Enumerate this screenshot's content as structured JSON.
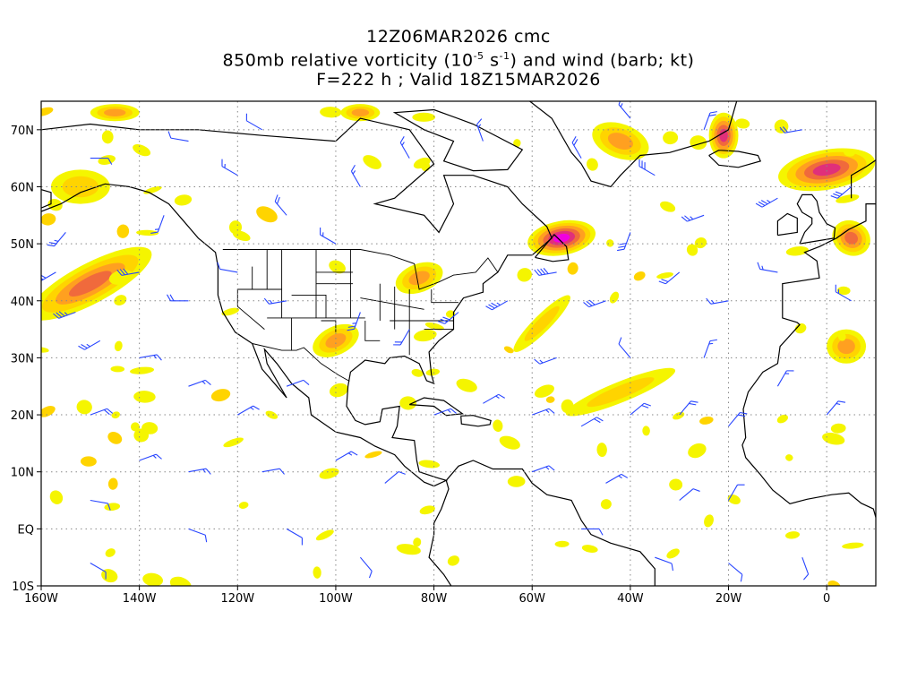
{
  "title": {
    "line1": "12Z06MAR2026 cmc",
    "line2_pre": "850mb relative vorticity (10",
    "line2_sup1": "-5",
    "line2_mid": " s",
    "line2_sup2": "-1",
    "line2_post": ") and wind (barb; kt)",
    "line3": "F=222 h ; Valid 18Z15MAR2026"
  },
  "axes": {
    "lon_range": [
      -160,
      10
    ],
    "lat_range": [
      -10,
      75
    ],
    "x_ticks": [
      {
        "lon": -160,
        "label": "160W"
      },
      {
        "lon": -140,
        "label": "140W"
      },
      {
        "lon": -120,
        "label": "120W"
      },
      {
        "lon": -100,
        "label": "100W"
      },
      {
        "lon": -80,
        "label": "80W"
      },
      {
        "lon": -60,
        "label": "60W"
      },
      {
        "lon": -40,
        "label": "40W"
      },
      {
        "lon": -20,
        "label": "20W"
      },
      {
        "lon": 0,
        "label": "0"
      }
    ],
    "y_ticks": [
      {
        "lat": -10,
        "label": "10S"
      },
      {
        "lat": 0,
        "label": "EQ"
      },
      {
        "lat": 10,
        "label": "10N"
      },
      {
        "lat": 20,
        "label": "20N"
      },
      {
        "lat": 30,
        "label": "30N"
      },
      {
        "lat": 40,
        "label": "40N"
      },
      {
        "lat": 50,
        "label": "50N"
      },
      {
        "lat": 60,
        "label": "60N"
      },
      {
        "lat": 70,
        "label": "70N"
      }
    ],
    "grid": "dotted"
  },
  "colors": {
    "level1": "#f5f500",
    "level2": "#ffd400",
    "level3": "#ffa020",
    "level4": "#f06a3c",
    "level5": "#e0307a",
    "level6": "#f000e0",
    "wind_barb": "#2845ff",
    "coastline": "#000000"
  },
  "vorticity_features": [
    {
      "name": "north-pacific-band",
      "lon": -150,
      "lat": 43,
      "rlon": 14,
      "rlat": 3.5,
      "rot": -28,
      "peak": 4
    },
    {
      "name": "gulf-alaska",
      "lon": -152,
      "lat": 60,
      "rlon": 6,
      "rlat": 3,
      "rot": 0,
      "peak": 2
    },
    {
      "name": "bering",
      "lon": -145,
      "lat": 73,
      "rlon": 5,
      "rlat": 1.5,
      "rot": 0,
      "peak": 3
    },
    {
      "name": "newfoundland-low",
      "lon": -54,
      "lat": 51,
      "rlon": 7,
      "rlat": 3,
      "rot": -10,
      "peak": 6
    },
    {
      "name": "great-lakes",
      "lon": -83,
      "lat": 44,
      "rlon": 5,
      "rlat": 2.5,
      "rot": -20,
      "peak": 3
    },
    {
      "name": "southern-plains",
      "lon": -100,
      "lat": 33,
      "rlon": 5,
      "rlat": 2.5,
      "rot": -25,
      "peak": 3
    },
    {
      "name": "greenland-east",
      "lon": -21,
      "lat": 69,
      "rlon": 3,
      "rlat": 4,
      "rot": 0,
      "peak": 5
    },
    {
      "name": "iceland-norway",
      "lon": 0,
      "lat": 63,
      "rlon": 10,
      "rlat": 3.5,
      "rot": -10,
      "peak": 5
    },
    {
      "name": "greenland-west",
      "lon": -42,
      "lat": 68,
      "rlon": 6,
      "rlat": 3,
      "rot": 20,
      "peak": 3
    },
    {
      "name": "hudson-north",
      "lon": -95,
      "lat": 73,
      "rlon": 4,
      "rlat": 1.5,
      "rot": 0,
      "peak": 3
    },
    {
      "name": "atlantic-trough",
      "lon": -42,
      "lat": 24,
      "rlon": 12,
      "rlat": 1.8,
      "rot": -22,
      "peak": 2
    },
    {
      "name": "mid-atlantic-band",
      "lon": -58,
      "lat": 36,
      "rlon": 8,
      "rlat": 1.5,
      "rot": -45,
      "peak": 2
    },
    {
      "name": "uk-north-sea",
      "lon": 5,
      "lat": 51,
      "rlon": 4,
      "rlat": 3,
      "rot": 30,
      "peak": 4
    },
    {
      "name": "west-africa",
      "lon": 4,
      "lat": 32,
      "rlon": 4,
      "rlat": 3,
      "rot": 0,
      "peak": 3
    }
  ],
  "wind_barbs": [
    {
      "lon": -153,
      "lat": 38,
      "dir": 250,
      "spd": 35
    },
    {
      "lon": -148,
      "lat": 33,
      "dir": 240,
      "spd": 25
    },
    {
      "lon": -140,
      "lat": 45,
      "dir": 260,
      "spd": 30
    },
    {
      "lon": -130,
      "lat": 40,
      "dir": 270,
      "spd": 20
    },
    {
      "lon": -155,
      "lat": 52,
      "dir": 220,
      "spd": 25
    },
    {
      "lon": -135,
      "lat": 55,
      "dir": 200,
      "spd": 15
    },
    {
      "lon": -150,
      "lat": 65,
      "dir": 90,
      "spd": 10
    },
    {
      "lon": -120,
      "lat": 62,
      "dir": 300,
      "spd": 15
    },
    {
      "lon": -110,
      "lat": 55,
      "dir": 320,
      "spd": 20
    },
    {
      "lon": -95,
      "lat": 60,
      "dir": 330,
      "spd": 15
    },
    {
      "lon": -100,
      "lat": 50,
      "dir": 300,
      "spd": 15
    },
    {
      "lon": -120,
      "lat": 45,
      "dir": 280,
      "spd": 10
    },
    {
      "lon": -110,
      "lat": 40,
      "dir": 260,
      "spd": 15
    },
    {
      "lon": -95,
      "lat": 38,
      "dir": 200,
      "spd": 25
    },
    {
      "lon": -85,
      "lat": 35,
      "dir": 210,
      "spd": 20
    },
    {
      "lon": -75,
      "lat": 38,
      "dir": 230,
      "spd": 30
    },
    {
      "lon": -65,
      "lat": 40,
      "dir": 240,
      "spd": 35
    },
    {
      "lon": -55,
      "lat": 45,
      "dir": 260,
      "spd": 40
    },
    {
      "lon": -45,
      "lat": 40,
      "dir": 250,
      "spd": 30
    },
    {
      "lon": -40,
      "lat": 52,
      "dir": 200,
      "spd": 30
    },
    {
      "lon": -30,
      "lat": 45,
      "dir": 230,
      "spd": 20
    },
    {
      "lon": -20,
      "lat": 40,
      "dir": 260,
      "spd": 15
    },
    {
      "lon": -10,
      "lat": 45,
      "dir": 280,
      "spd": 15
    },
    {
      "lon": -25,
      "lat": 55,
      "dir": 250,
      "spd": 25
    },
    {
      "lon": -10,
      "lat": 58,
      "dir": 240,
      "spd": 35
    },
    {
      "lon": -35,
      "lat": 62,
      "dir": 300,
      "spd": 30
    },
    {
      "lon": -50,
      "lat": 65,
      "dir": 330,
      "spd": 20
    },
    {
      "lon": -70,
      "lat": 68,
      "dir": 340,
      "spd": 15
    },
    {
      "lon": -85,
      "lat": 65,
      "dir": 330,
      "spd": 15
    },
    {
      "lon": -140,
      "lat": 30,
      "dir": 80,
      "spd": 15
    },
    {
      "lon": -130,
      "lat": 25,
      "dir": 70,
      "spd": 15
    },
    {
      "lon": -120,
      "lat": 20,
      "dir": 60,
      "spd": 15
    },
    {
      "lon": -110,
      "lat": 25,
      "dir": 70,
      "spd": 10
    },
    {
      "lon": -150,
      "lat": 20,
      "dir": 70,
      "spd": 20
    },
    {
      "lon": -140,
      "lat": 12,
      "dir": 70,
      "spd": 15
    },
    {
      "lon": -130,
      "lat": 10,
      "dir": 80,
      "spd": 15
    },
    {
      "lon": -115,
      "lat": 10,
      "dir": 80,
      "spd": 10
    },
    {
      "lon": -100,
      "lat": 12,
      "dir": 60,
      "spd": 15
    },
    {
      "lon": -90,
      "lat": 8,
      "dir": 50,
      "spd": 10
    },
    {
      "lon": -150,
      "lat": 5,
      "dir": 100,
      "spd": 10
    },
    {
      "lon": -130,
      "lat": 0,
      "dir": 110,
      "spd": 10
    },
    {
      "lon": -110,
      "lat": 0,
      "dir": 120,
      "spd": 10
    },
    {
      "lon": -95,
      "lat": -5,
      "dir": 140,
      "spd": 10
    },
    {
      "lon": -150,
      "lat": -6,
      "dir": 120,
      "spd": 10
    },
    {
      "lon": -80,
      "lat": 20,
      "dir": 70,
      "spd": 15
    },
    {
      "lon": -70,
      "lat": 22,
      "dir": 60,
      "spd": 15
    },
    {
      "lon": -60,
      "lat": 20,
      "dir": 70,
      "spd": 15
    },
    {
      "lon": -50,
      "lat": 18,
      "dir": 60,
      "spd": 20
    },
    {
      "lon": -40,
      "lat": 20,
      "dir": 50,
      "spd": 20
    },
    {
      "lon": -30,
      "lat": 20,
      "dir": 40,
      "spd": 20
    },
    {
      "lon": -20,
      "lat": 18,
      "dir": 40,
      "spd": 20
    },
    {
      "lon": -60,
      "lat": 10,
      "dir": 70,
      "spd": 15
    },
    {
      "lon": -45,
      "lat": 8,
      "dir": 60,
      "spd": 15
    },
    {
      "lon": -30,
      "lat": 5,
      "dir": 50,
      "spd": 10
    },
    {
      "lon": -20,
      "lat": 5,
      "dir": 30,
      "spd": 10
    },
    {
      "lon": -50,
      "lat": 0,
      "dir": 90,
      "spd": 10
    },
    {
      "lon": -35,
      "lat": -5,
      "dir": 110,
      "spd": 10
    },
    {
      "lon": -20,
      "lat": -6,
      "dir": 130,
      "spd": 10
    },
    {
      "lon": -5,
      "lat": -5,
      "dir": 160,
      "spd": 10
    },
    {
      "lon": -55,
      "lat": 30,
      "dir": 250,
      "spd": 15
    },
    {
      "lon": -40,
      "lat": 30,
      "dir": 320,
      "spd": 10
    },
    {
      "lon": -25,
      "lat": 30,
      "dir": 20,
      "spd": 15
    },
    {
      "lon": -10,
      "lat": 25,
      "dir": 30,
      "spd": 15
    },
    {
      "lon": 0,
      "lat": 20,
      "dir": 40,
      "spd": 15
    },
    {
      "lon": 5,
      "lat": 40,
      "dir": 300,
      "spd": 15
    },
    {
      "lon": 5,
      "lat": 60,
      "dir": 230,
      "spd": 30
    },
    {
      "lon": -5,
      "lat": 70,
      "dir": 260,
      "spd": 20
    },
    {
      "lon": -25,
      "lat": 70,
      "dir": 20,
      "spd": 20
    },
    {
      "lon": -40,
      "lat": 72,
      "dir": 320,
      "spd": 15
    },
    {
      "lon": -115,
      "lat": 70,
      "dir": 300,
      "spd": 10
    },
    {
      "lon": -130,
      "lat": 68,
      "dir": 280,
      "spd": 10
    },
    {
      "lon": -157,
      "lat": 45,
      "dir": 240,
      "spd": 30
    }
  ]
}
